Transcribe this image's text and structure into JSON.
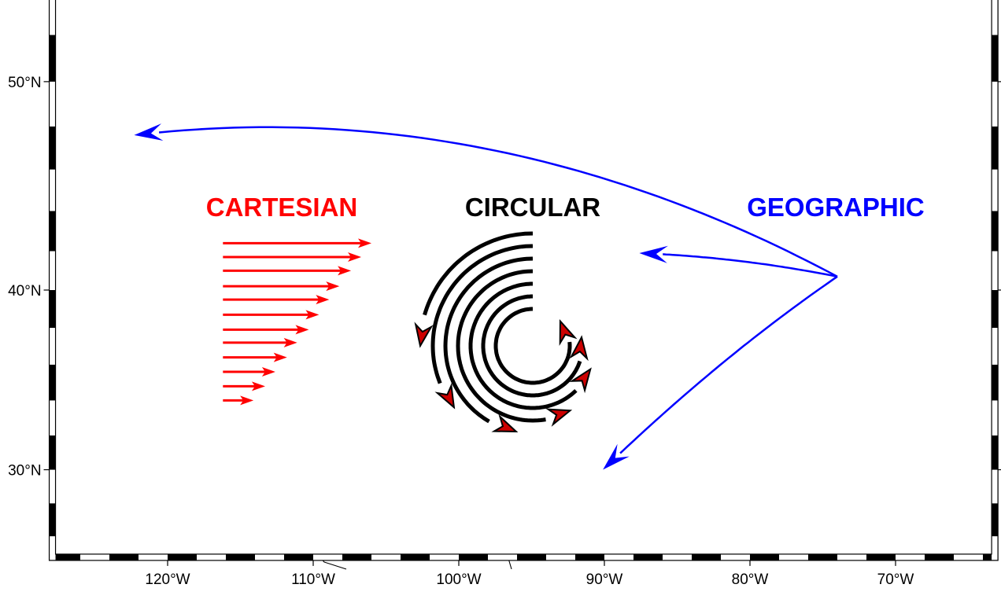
{
  "map": {
    "projection": "mercator",
    "region": {
      "lon_min": -127.7,
      "lon_max": -63.4,
      "lat_min": 24.9,
      "lat_max": 53.6
    },
    "lon_ticks": [
      {
        "lon": -120,
        "label": "120°W"
      },
      {
        "lon": -110,
        "label": "110°W"
      },
      {
        "lon": -100,
        "label": "100°W"
      },
      {
        "lon": -90,
        "label": "90°W"
      },
      {
        "lon": -80,
        "label": "80°W"
      },
      {
        "lon": -70,
        "label": "70°W"
      }
    ],
    "lat_ticks": [
      {
        "lat": 50,
        "label": "50°N"
      },
      {
        "lat": 40,
        "label": "40°N"
      },
      {
        "lat": 30,
        "label": "30°N"
      }
    ],
    "frame_style": "fancy checkerboard, 2° intervals"
  },
  "labels": {
    "cartesian": "CARTESIAN",
    "circular": "CIRCULAR",
    "geographic": "GEOGRAPHIC"
  },
  "colors": {
    "cartesian": "#ff0000",
    "circular_line": "#000000",
    "circular_head": "#cc0000",
    "geographic": "#0000ff"
  },
  "cartesian_vectors": {
    "start_lon": -116.2,
    "lengths_deg": [
      10.2,
      9.5,
      8.8,
      8.0,
      7.3,
      6.6,
      5.9,
      5.1,
      4.4,
      3.6,
      2.9,
      2.1
    ],
    "lats": [
      42.4,
      41.7,
      41.0,
      40.2,
      39.5,
      38.7,
      37.9,
      37.2,
      36.4,
      35.6,
      34.8,
      34.0
    ]
  },
  "circular_vectors": {
    "start_angle_deg": 90,
    "end_angles_deg": [
      402,
      370,
      338,
      300,
      259,
      218,
      180
    ]
  },
  "geographic_vectors": {
    "origin": {
      "lon": -74.0,
      "lat": 40.7
    },
    "targets": [
      {
        "lon": -122.3,
        "lat": 47.6
      },
      {
        "lon": -87.6,
        "lat": 41.9
      },
      {
        "lon": -90.1,
        "lat": 30.0
      }
    ]
  }
}
